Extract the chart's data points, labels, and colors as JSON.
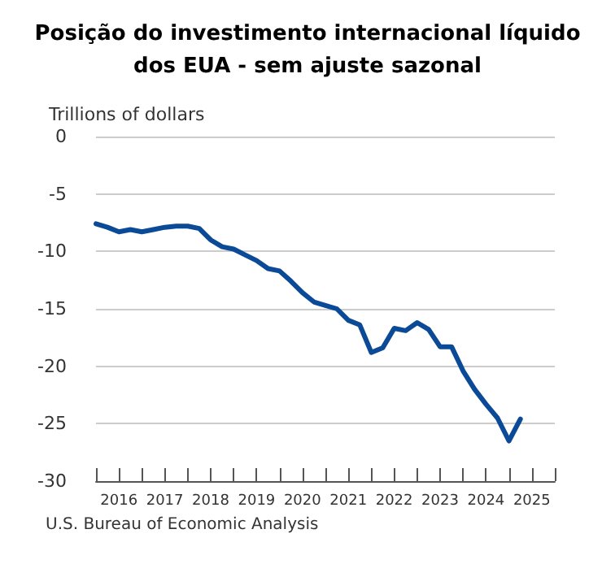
{
  "chart_data": {
    "type": "line",
    "title": "Posição do investimento internacional líquido\ndos EUA - sem ajuste sazonal",
    "ylabel": "Trillions of dollars",
    "annotations": [
      "U.S. Bureau of Economic Analysis"
    ],
    "x": [
      2016,
      2016.25,
      2016.5,
      2016.75,
      2017,
      2017.25,
      2017.5,
      2017.75,
      2018,
      2018.25,
      2018.5,
      2018.75,
      2019,
      2019.25,
      2019.5,
      2019.75,
      2020,
      2020.25,
      2020.5,
      2020.75,
      2021,
      2021.25,
      2021.5,
      2021.75,
      2022,
      2022.25,
      2022.5,
      2022.75,
      2023,
      2023.25,
      2023.5,
      2023.75,
      2024,
      2024.25,
      2024.5,
      2024.75,
      2025,
      2025.25
    ],
    "series": [
      {
        "color": "#0b4a97",
        "values": [
          -7.6,
          -7.9,
          -8.3,
          -8.1,
          -8.3,
          -8.1,
          -7.9,
          -7.8,
          -7.8,
          -8.0,
          -9.0,
          -9.6,
          -9.8,
          -10.3,
          -10.8,
          -11.5,
          -11.7,
          -12.6,
          -13.6,
          -14.4,
          -14.7,
          -15.0,
          -16.0,
          -16.4,
          -18.8,
          -18.4,
          -16.7,
          -16.9,
          -16.2,
          -16.8,
          -18.3,
          -18.3,
          -20.4,
          -22.0,
          -23.3,
          -24.5,
          -26.5,
          -24.6
        ]
      }
    ],
    "xlim": [
      2016,
      2026
    ],
    "xticks": [
      {
        "value": 2016,
        "label": null
      },
      {
        "value": 2016.5,
        "label": "2016"
      },
      {
        "value": 2017,
        "label": null
      },
      {
        "value": 2017.5,
        "label": "2017"
      },
      {
        "value": 2018,
        "label": null
      },
      {
        "value": 2018.5,
        "label": "2018"
      },
      {
        "value": 2019,
        "label": null
      },
      {
        "value": 2019.5,
        "label": "2019"
      },
      {
        "value": 2020,
        "label": null
      },
      {
        "value": 2020.5,
        "label": "2020"
      },
      {
        "value": 2021,
        "label": null
      },
      {
        "value": 2021.5,
        "label": "2021"
      },
      {
        "value": 2022,
        "label": null
      },
      {
        "value": 2022.5,
        "label": "2022"
      },
      {
        "value": 2023,
        "label": null
      },
      {
        "value": 2023.5,
        "label": "2023"
      },
      {
        "value": 2024,
        "label": null
      },
      {
        "value": 2024.5,
        "label": "2024"
      },
      {
        "value": 2025,
        "label": null
      },
      {
        "value": 2025.5,
        "label": "2025"
      },
      {
        "value": 2026,
        "label": null
      }
    ],
    "ylim": [
      -30,
      0
    ],
    "yticks": [
      -30,
      -25,
      -20,
      -15,
      -10,
      -5,
      0
    ],
    "grid": "y",
    "marker": "none",
    "line_style": "solid"
  }
}
